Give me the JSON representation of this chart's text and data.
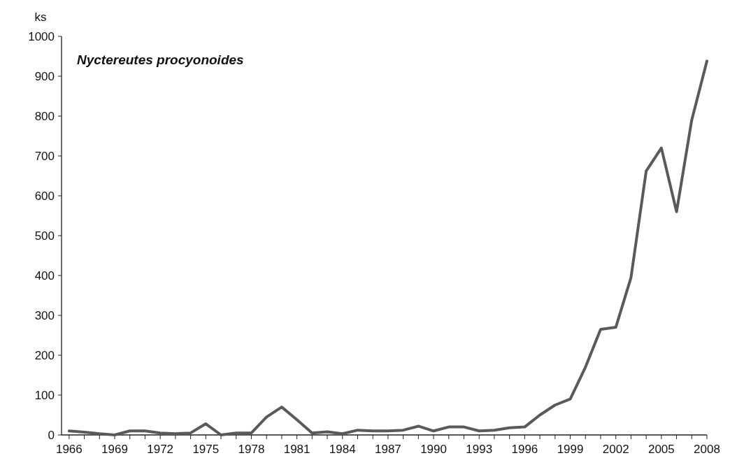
{
  "chart_data": {
    "type": "line",
    "title": "Nyctereutes procyonoides",
    "ylabel": "ks",
    "x": [
      1966,
      1967,
      1968,
      1969,
      1970,
      1971,
      1972,
      1973,
      1974,
      1975,
      1976,
      1977,
      1978,
      1979,
      1980,
      1981,
      1982,
      1983,
      1984,
      1985,
      1986,
      1987,
      1988,
      1989,
      1990,
      1991,
      1992,
      1993,
      1994,
      1995,
      1996,
      1997,
      1998,
      1999,
      2000,
      2001,
      2002,
      2003,
      2004,
      2005,
      2006,
      2007,
      2008
    ],
    "series": [
      {
        "color": "#5a5a5a",
        "values": [
          10,
          7,
          3,
          0,
          10,
          10,
          5,
          3,
          5,
          28,
          0,
          5,
          5,
          45,
          70,
          38,
          5,
          8,
          3,
          12,
          10,
          10,
          12,
          22,
          10,
          20,
          20,
          10,
          12,
          18,
          20,
          50,
          75,
          90,
          170,
          265,
          270,
          395,
          662,
          720,
          560,
          790,
          938
        ]
      }
    ],
    "xlim": [
      1965.5,
      2008
    ],
    "xticks": [
      1966,
      {
        "value": 1967,
        "label": null
      },
      {
        "value": 1968,
        "label": null
      },
      1969,
      {
        "value": 1970,
        "label": null
      },
      {
        "value": 1971,
        "label": null
      },
      1972,
      {
        "value": 1973,
        "label": null
      },
      {
        "value": 1974,
        "label": null
      },
      1975,
      {
        "value": 1976,
        "label": null
      },
      {
        "value": 1977,
        "label": null
      },
      1978,
      {
        "value": 1979,
        "label": null
      },
      {
        "value": 1980,
        "label": null
      },
      1981,
      {
        "value": 1982,
        "label": null
      },
      {
        "value": 1983,
        "label": null
      },
      1984,
      {
        "value": 1985,
        "label": null
      },
      {
        "value": 1986,
        "label": null
      },
      1987,
      {
        "value": 1988,
        "label": null
      },
      {
        "value": 1989,
        "label": null
      },
      1990,
      {
        "value": 1991,
        "label": null
      },
      {
        "value": 1992,
        "label": null
      },
      1993,
      {
        "value": 1994,
        "label": null
      },
      {
        "value": 1995,
        "label": null
      },
      1996,
      {
        "value": 1997,
        "label": null
      },
      {
        "value": 1998,
        "label": null
      },
      1999,
      {
        "value": 2000,
        "label": null
      },
      {
        "value": 2001,
        "label": null
      },
      2002,
      {
        "value": 2003,
        "label": null
      },
      {
        "value": 2004,
        "label": null
      },
      2005,
      {
        "value": 2006,
        "label": null
      },
      {
        "value": 2007,
        "label": null
      },
      2008
    ],
    "ylim": [
      0,
      1000
    ],
    "yticks": [
      0,
      100,
      200,
      300,
      400,
      500,
      600,
      700,
      800,
      900,
      1000
    ],
    "grid": false,
    "marker": "none",
    "line_style": "solid"
  }
}
